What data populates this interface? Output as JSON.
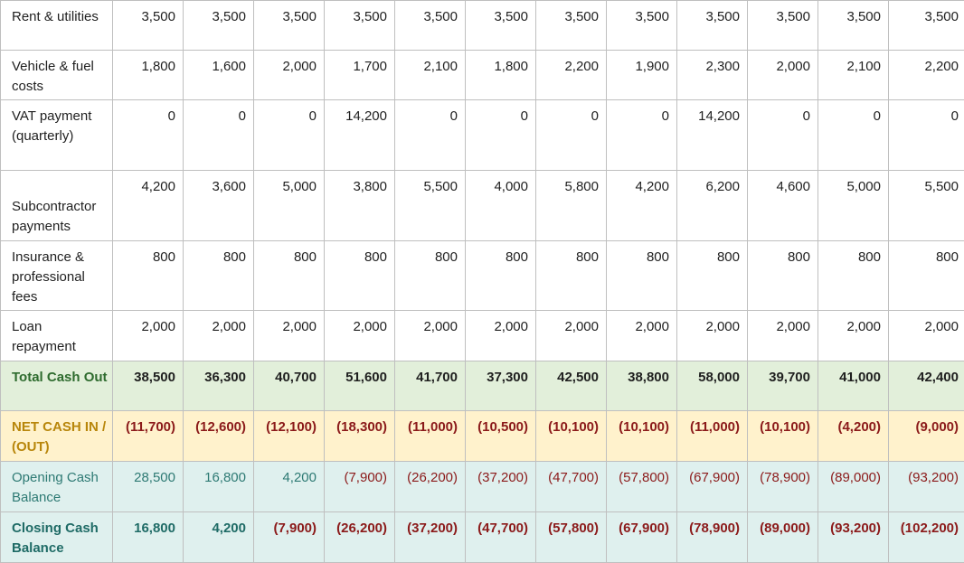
{
  "rows": [
    {
      "label": "Rent & utilities",
      "values": [
        "3,500",
        "3,500",
        "3,500",
        "3,500",
        "3,500",
        "3,500",
        "3,500",
        "3,500",
        "3,500",
        "3,500",
        "3,500",
        "3,500"
      ]
    },
    {
      "label": "Vehicle & fuel costs",
      "values": [
        "1,800",
        "1,600",
        "2,000",
        "1,700",
        "2,100",
        "1,800",
        "2,200",
        "1,900",
        "2,300",
        "2,000",
        "2,100",
        "2,200"
      ]
    },
    {
      "label": "VAT payment (quarterly)",
      "values": [
        "0",
        "0",
        "0",
        "14,200",
        "0",
        "0",
        "0",
        "0",
        "14,200",
        "0",
        "0",
        "0"
      ]
    },
    {
      "label": "Subcontractor payments",
      "values": [
        "4,200",
        "3,600",
        "5,000",
        "3,800",
        "5,500",
        "4,000",
        "5,800",
        "4,200",
        "6,200",
        "4,600",
        "5,000",
        "5,500"
      ]
    },
    {
      "label": "Insurance & professional fees",
      "values": [
        "800",
        "800",
        "800",
        "800",
        "800",
        "800",
        "800",
        "800",
        "800",
        "800",
        "800",
        "800"
      ]
    },
    {
      "label": "Loan repayment",
      "values": [
        "2,000",
        "2,000",
        "2,000",
        "2,000",
        "2,000",
        "2,000",
        "2,000",
        "2,000",
        "2,000",
        "2,000",
        "2,000",
        "2,000"
      ]
    },
    {
      "label": "Total Cash Out",
      "values": [
        "38,500",
        "36,300",
        "40,700",
        "51,600",
        "41,700",
        "37,300",
        "42,500",
        "38,800",
        "58,000",
        "39,700",
        "41,000",
        "42,400"
      ]
    },
    {
      "label": "NET CASH IN / (OUT)",
      "values": [
        "(11,700)",
        "(12,600)",
        "(12,100)",
        "(18,300)",
        "(11,000)",
        "(10,500)",
        "(10,100)",
        "(10,100)",
        "(11,000)",
        "(10,100)",
        "(4,200)",
        "(9,000)"
      ]
    },
    {
      "label": "Opening Cash Balance",
      "values": [
        "28,500",
        "16,800",
        "4,200",
        "(7,900)",
        "(26,200)",
        "(37,200)",
        "(47,700)",
        "(57,800)",
        "(67,900)",
        "(78,900)",
        "(89,000)",
        "(93,200)"
      ]
    },
    {
      "label": "Closing Cash Balance",
      "values": [
        "16,800",
        "4,200",
        "(7,900)",
        "(26,200)",
        "(37,200)",
        "(47,700)",
        "(57,800)",
        "(67,900)",
        "(78,900)",
        "(89,000)",
        "(93,200)",
        "(102,200)"
      ]
    }
  ]
}
